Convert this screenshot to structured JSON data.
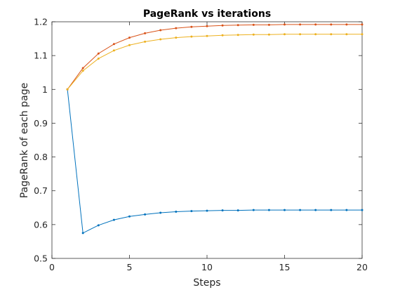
{
  "chart_data": {
    "type": "line",
    "title": "PageRank vs iterations",
    "xlabel": "Steps",
    "ylabel": "PageRank of each page",
    "xlim": [
      0,
      20
    ],
    "ylim": [
      0.5,
      1.2
    ],
    "xticks": [
      "0",
      "5",
      "10",
      "15",
      "20"
    ],
    "yticks": [
      "0.5",
      "0.6",
      "0.7",
      "0.8",
      "0.9",
      "1",
      "1.1",
      "1.2"
    ],
    "grid": false,
    "x": [
      1,
      2,
      3,
      4,
      5,
      6,
      7,
      8,
      9,
      10,
      11,
      12,
      13,
      14,
      15,
      16,
      17,
      18,
      19,
      20
    ],
    "series": [
      {
        "color": "#0072BD",
        "values": [
          1.0,
          0.575,
          0.598,
          0.614,
          0.624,
          0.63,
          0.635,
          0.638,
          0.64,
          0.641,
          0.642,
          0.642,
          0.643,
          0.643,
          0.643,
          0.643,
          0.643,
          0.643,
          0.643,
          0.643
        ]
      },
      {
        "color": "#D95319",
        "values": [
          1.0,
          1.063,
          1.106,
          1.134,
          1.153,
          1.166,
          1.175,
          1.181,
          1.185,
          1.187,
          1.189,
          1.19,
          1.191,
          1.191,
          1.192,
          1.192,
          1.192,
          1.192,
          1.192,
          1.192
        ]
      },
      {
        "color": "#EDB120",
        "values": [
          1.0,
          1.055,
          1.091,
          1.115,
          1.131,
          1.141,
          1.148,
          1.153,
          1.156,
          1.158,
          1.16,
          1.161,
          1.162,
          1.162,
          1.163,
          1.163,
          1.163,
          1.163,
          1.163,
          1.163
        ]
      }
    ]
  }
}
